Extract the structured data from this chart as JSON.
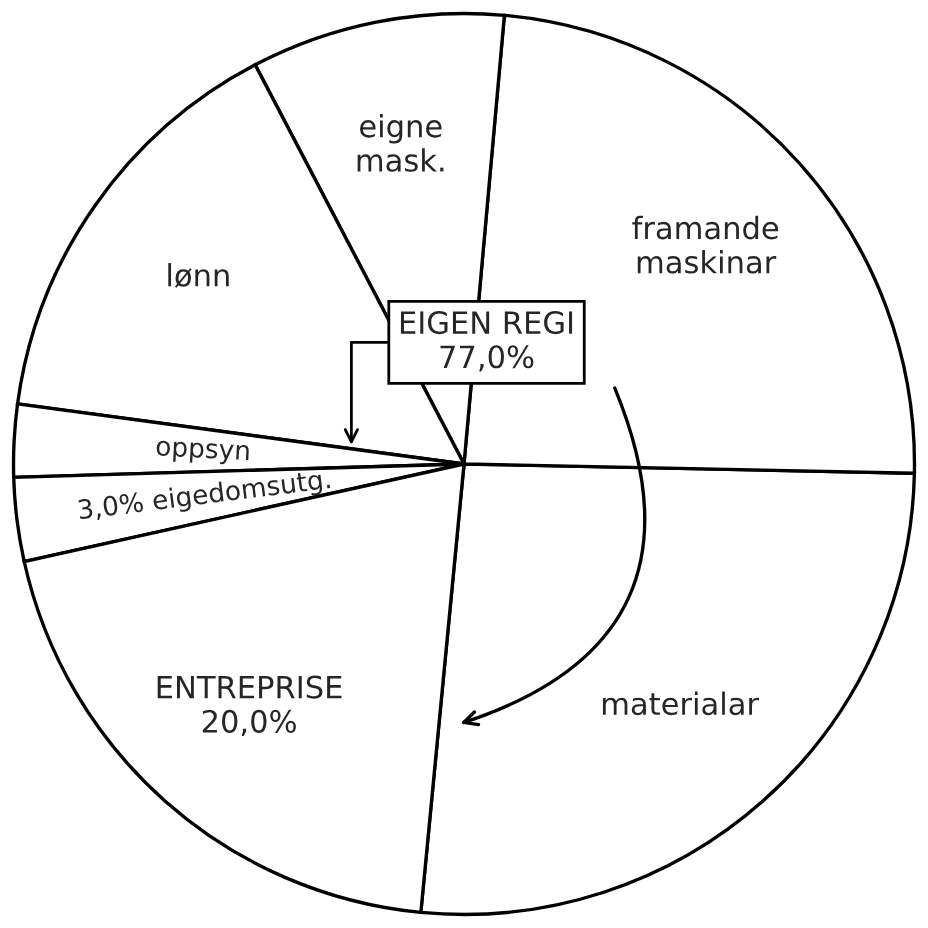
{
  "chart_data": {
    "type": "pie",
    "categories": [
      "materialar",
      "framande maskinar",
      "eigne mask.",
      "lønn",
      "oppsyn",
      "eigedomsutg.",
      "ENTREPRISE"
    ],
    "values": [
      26.2,
      23.9,
      9.1,
      15.2,
      2.6,
      3.0,
      20.0
    ],
    "value_labels": [
      null,
      null,
      null,
      null,
      null,
      "3,0%",
      "20,0%"
    ],
    "colors": [
      "#ffffff",
      "#ffffff",
      "#ffffff",
      "#ffffff",
      "#ffffff",
      "#ffffff",
      "#ffffff"
    ],
    "annotations": [
      "EIGEN REGI\n77,0%"
    ]
  }
}
